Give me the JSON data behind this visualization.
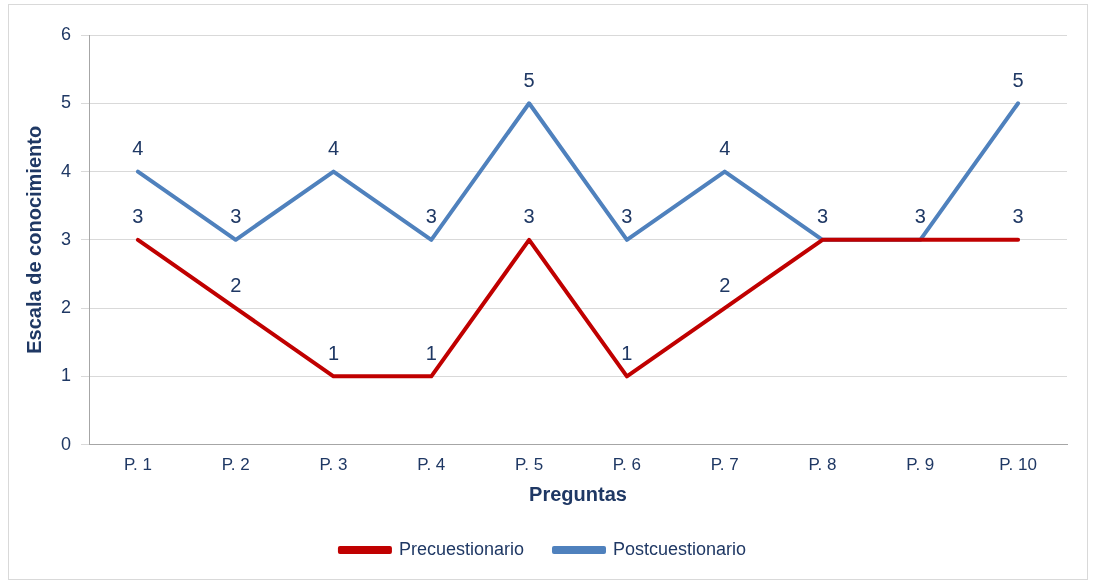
{
  "chart_data": {
    "type": "line",
    "xlabel": "Preguntas",
    "ylabel": "Escala de conocimiento",
    "categories": [
      "P. 1",
      "P. 2",
      "P. 3",
      "P. 4",
      "P. 5",
      "P. 6",
      "P. 7",
      "P. 8",
      "P. 9",
      "P. 10"
    ],
    "series": [
      {
        "name": "Precuestionario",
        "color": "#c00000",
        "values": [
          3,
          2,
          1,
          1,
          3,
          1,
          2,
          3,
          3,
          3
        ],
        "value_labels": [
          "3",
          "2",
          "1",
          "1",
          "3",
          "1",
          "2",
          "3",
          "3",
          "3"
        ]
      },
      {
        "name": "Postcuestionario",
        "color": "#4f81bd",
        "values": [
          4,
          3,
          4,
          3,
          5,
          3,
          4,
          3,
          3,
          5
        ],
        "value_labels": [
          "4",
          "3",
          "4",
          "3",
          "5",
          "3",
          "4",
          null,
          null,
          "5"
        ]
      }
    ],
    "ylim": [
      0,
      6
    ],
    "yticks": [
      0,
      1,
      2,
      3,
      4,
      5,
      6
    ],
    "grid": "y",
    "legend": "bottom",
    "marker": "none",
    "line_style": "solid"
  }
}
